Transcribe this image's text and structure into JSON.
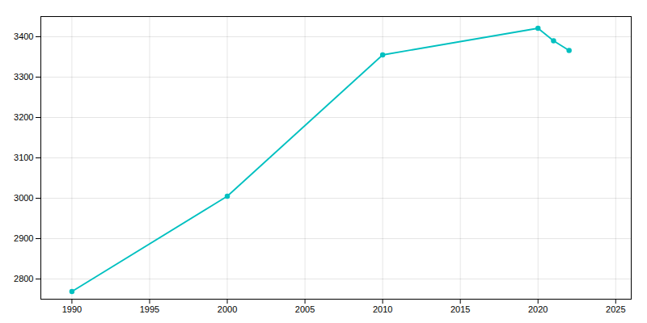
{
  "chart_data": {
    "type": "line",
    "x": [
      1990,
      2000,
      2010,
      2020,
      2021,
      2022
    ],
    "values": [
      2769,
      3005,
      3355,
      3421,
      3390,
      3366
    ],
    "color": "#00C0C0",
    "marker": "circle",
    "xlim": [
      1988,
      2026
    ],
    "ylim": [
      2750,
      3450
    ],
    "xticks": [
      1990,
      1995,
      2000,
      2005,
      2010,
      2015,
      2020,
      2025
    ],
    "yticks": [
      2800,
      2900,
      3000,
      3100,
      3200,
      3300,
      3400
    ],
    "grid": true
  }
}
